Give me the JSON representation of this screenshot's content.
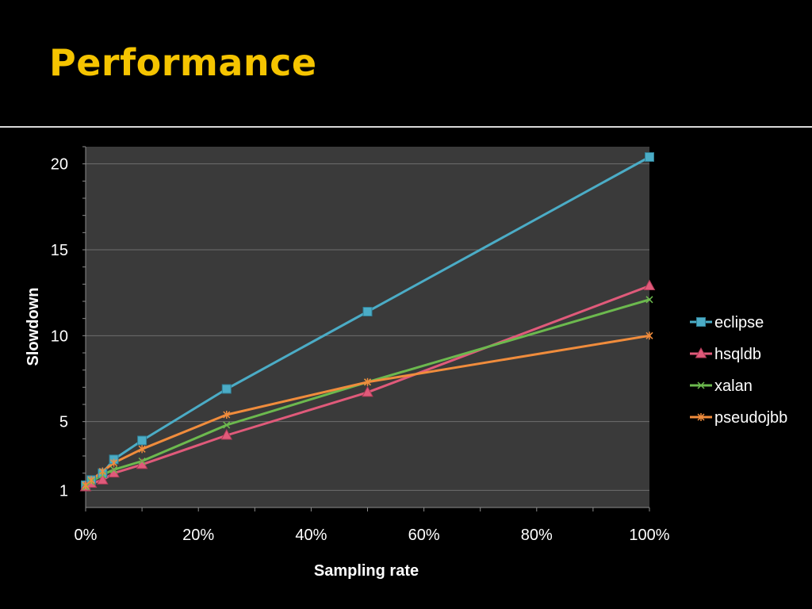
{
  "slide": {
    "title": "Performance"
  },
  "chart_data": {
    "type": "line",
    "title": "",
    "xlabel": "Sampling rate",
    "ylabel": "Slowdown",
    "xlim": [
      0,
      100
    ],
    "ylim": [
      0,
      21
    ],
    "x_ticks": [
      "0%",
      "20%",
      "40%",
      "60%",
      "80%",
      "100%"
    ],
    "x_tick_values": [
      0,
      20,
      40,
      60,
      80,
      100
    ],
    "y_ticks": [
      "1",
      "5",
      "10",
      "15",
      "20"
    ],
    "y_tick_values": [
      1,
      5,
      10,
      15,
      20
    ],
    "grid": true,
    "legend_position": "right",
    "series": [
      {
        "name": "eclipse",
        "color": "#4bacc6",
        "marker": "square",
        "x": [
          0,
          1,
          3,
          5,
          10,
          25,
          50,
          100
        ],
        "y": [
          1.3,
          1.6,
          2.0,
          2.8,
          3.9,
          6.9,
          11.4,
          20.4
        ]
      },
      {
        "name": "hsqldb",
        "color": "#e05a7a",
        "marker": "triangle",
        "x": [
          0,
          1,
          3,
          5,
          10,
          25,
          50,
          100
        ],
        "y": [
          1.2,
          1.4,
          1.6,
          2.0,
          2.5,
          4.2,
          6.7,
          12.9
        ]
      },
      {
        "name": "xalan",
        "color": "#6cb94e",
        "marker": "x",
        "x": [
          0,
          1,
          3,
          5,
          10,
          25,
          50,
          100
        ],
        "y": [
          1.2,
          1.5,
          1.9,
          2.2,
          2.7,
          4.8,
          7.3,
          12.1
        ]
      },
      {
        "name": "pseudojbb",
        "color": "#f08c3c",
        "marker": "star",
        "x": [
          0,
          1,
          3,
          5,
          10,
          25,
          50,
          100
        ],
        "y": [
          1.3,
          1.6,
          2.1,
          2.6,
          3.4,
          5.4,
          7.3,
          10.0
        ]
      }
    ]
  },
  "colors": {
    "background": "#000000",
    "plot_area": "#3a3a3a",
    "gridline": "#6e6e6e",
    "title": "#f5c400"
  }
}
